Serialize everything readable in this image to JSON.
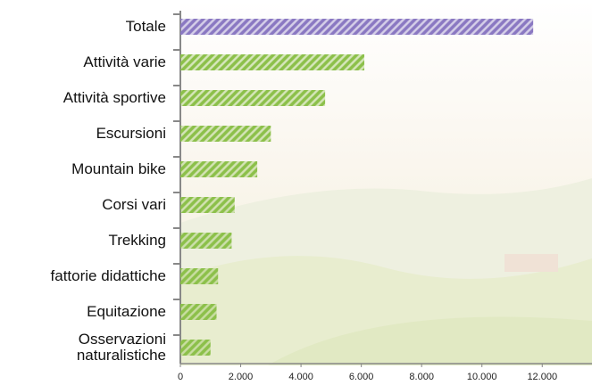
{
  "chart_data": {
    "type": "bar",
    "orientation": "horizontal",
    "categories": [
      "Totale",
      "Attività varie",
      "Attività sportive",
      "Escursioni",
      "Mountain bike",
      "Corsi vari",
      "Trekking",
      "fattorie didattiche",
      "Equitazione",
      "Osservazioni naturalistiche"
    ],
    "values": [
      11700,
      6100,
      4800,
      3000,
      2550,
      1800,
      1700,
      1250,
      1200,
      1000
    ],
    "colors": [
      "#8a78c2",
      "#8cc04a",
      "#8cc04a",
      "#8cc04a",
      "#8cc04a",
      "#8cc04a",
      "#8cc04a",
      "#8cc04a",
      "#8cc04a",
      "#8cc04a"
    ],
    "xlim": [
      0,
      13650
    ],
    "xticks": [
      0,
      {
        "value": 2000,
        "label": "2.000"
      },
      {
        "value": 4000,
        "label": "4.000"
      },
      {
        "value": 6000,
        "label": "6.000"
      },
      {
        "value": 8000,
        "label": "8.000"
      },
      {
        "value": 10000,
        "label": "10.000"
      },
      {
        "value": 12000,
        "label": "12.000"
      }
    ],
    "hatched": true
  }
}
